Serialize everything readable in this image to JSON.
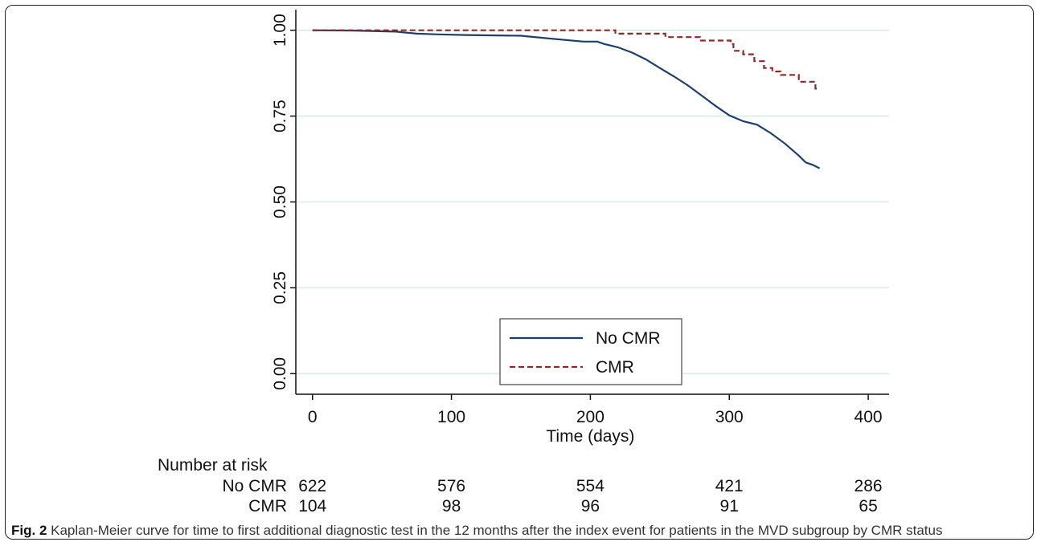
{
  "chart_data": {
    "type": "line",
    "subtype": "kaplan-meier step",
    "xlabel": "Time (days)",
    "ylabel": "",
    "xlim": [
      -12,
      415
    ],
    "ylim": [
      -0.06,
      1.06
    ],
    "x_ticks": [
      0,
      100,
      200,
      300,
      400
    ],
    "x_tick_labels": [
      "0",
      "100",
      "200",
      "300",
      "400"
    ],
    "y_ticks": [
      0,
      0.25,
      0.5,
      0.75,
      1
    ],
    "y_tick_labels": [
      "0.00",
      "0.25",
      "0.50",
      "0.75",
      "1.00"
    ],
    "grid": "horizontal",
    "legend_position": "bottom-center",
    "series": [
      {
        "name": "No CMR",
        "color": "#1f3f6b",
        "dash": "solid",
        "points": [
          [
            0,
            1.0
          ],
          [
            30,
            0.999
          ],
          [
            60,
            0.996
          ],
          [
            75,
            0.99
          ],
          [
            90,
            0.988
          ],
          [
            110,
            0.986
          ],
          [
            150,
            0.984
          ],
          [
            170,
            0.976
          ],
          [
            195,
            0.967
          ],
          [
            205,
            0.967
          ],
          [
            210,
            0.96
          ],
          [
            220,
            0.95
          ],
          [
            230,
            0.935
          ],
          [
            240,
            0.915
          ],
          [
            250,
            0.89
          ],
          [
            260,
            0.866
          ],
          [
            270,
            0.84
          ],
          [
            280,
            0.81
          ],
          [
            290,
            0.78
          ],
          [
            300,
            0.752
          ],
          [
            310,
            0.735
          ],
          [
            320,
            0.725
          ],
          [
            330,
            0.7
          ],
          [
            340,
            0.67
          ],
          [
            350,
            0.635
          ],
          [
            355,
            0.615
          ],
          [
            360,
            0.608
          ],
          [
            365,
            0.598
          ]
        ]
      },
      {
        "name": "CMR",
        "color": "#8b2a2a",
        "dash": "dashed",
        "points": [
          [
            0,
            1.0
          ],
          [
            218,
            1.0
          ],
          [
            218,
            0.99
          ],
          [
            254,
            0.99
          ],
          [
            254,
            0.98
          ],
          [
            279,
            0.98
          ],
          [
            279,
            0.97
          ],
          [
            301,
            0.97
          ],
          [
            301,
            0.96
          ],
          [
            303,
            0.96
          ],
          [
            303,
            0.94
          ],
          [
            310,
            0.94
          ],
          [
            310,
            0.93
          ],
          [
            318,
            0.93
          ],
          [
            318,
            0.91
          ],
          [
            325,
            0.91
          ],
          [
            325,
            0.89
          ],
          [
            331,
            0.89
          ],
          [
            331,
            0.88
          ],
          [
            337,
            0.88
          ],
          [
            337,
            0.87
          ],
          [
            350,
            0.87
          ],
          [
            350,
            0.85
          ],
          [
            362,
            0.85
          ],
          [
            362,
            0.83
          ],
          [
            364,
            0.83
          ]
        ]
      }
    ],
    "risk_table": {
      "title": "Number at risk",
      "times": [
        0,
        100,
        200,
        300,
        400
      ],
      "rows": [
        {
          "label": "No CMR",
          "values": [
            "622",
            "576",
            "554",
            "421",
            "286"
          ]
        },
        {
          "label": "CMR",
          "values": [
            "104",
            "98",
            "96",
            "91",
            "65"
          ]
        }
      ]
    }
  },
  "caption": {
    "label": "Fig. 2",
    "text": " Kaplan-Meier curve for time to first additional diagnostic test in the 12 months after the index event for patients in the MVD subgroup by CMR status"
  }
}
